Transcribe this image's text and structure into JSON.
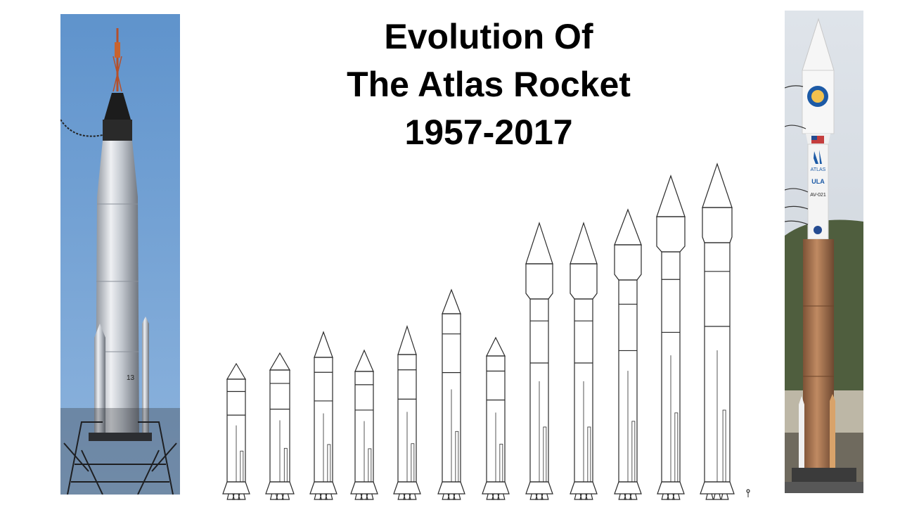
{
  "title_lines": [
    "Evolution Of",
    "The Atlas Rocket",
    "1957-2017"
  ],
  "colors": {
    "sky_blue": "#6c9fd2",
    "rocket_silver": "#c8ccd3",
    "booster_orange": "#b07a55",
    "ula_blue": "#1c5aa6",
    "outline": "#222222"
  },
  "left_photo": {
    "subject": "Mercury-Atlas rocket on launch pad",
    "hull_number": "13"
  },
  "right_photo": {
    "subject": "Atlas V rocket on launch pad",
    "fairing_text": [
      "ATLAS",
      "ULA",
      "AV-021"
    ]
  },
  "lineup_count": 12
}
